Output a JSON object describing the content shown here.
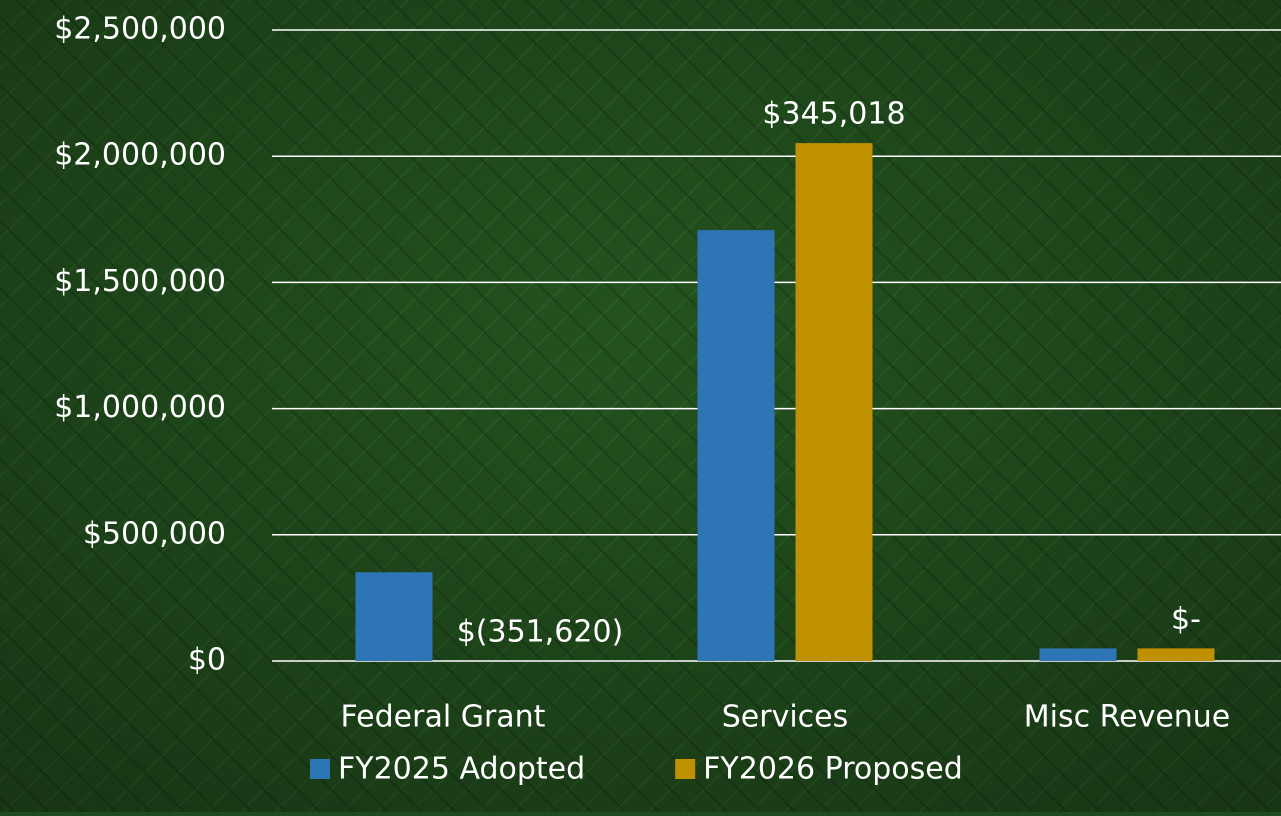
{
  "chart_data": {
    "type": "bar",
    "categories": [
      "Federal Grant",
      "Services",
      "Misc Revenue"
    ],
    "series": [
      {
        "name": "FY2025 Adopted",
        "color": "#2e75b6",
        "values": [
          351620,
          1707000,
          50000
        ]
      },
      {
        "name": "FY2026 Proposed",
        "color": "#bf9000",
        "values": [
          0,
          2052000,
          50000
        ]
      }
    ],
    "change_labels": [
      "$(351,620)",
      "$345,018",
      "$-"
    ],
    "ylim": [
      0,
      2500000
    ],
    "yticks": [
      {
        "value": 0,
        "label": "$0"
      },
      {
        "value": 500000,
        "label": "$500,000"
      },
      {
        "value": 1000000,
        "label": "$1,000,000"
      },
      {
        "value": 1500000,
        "label": "$1,500,000"
      },
      {
        "value": 2000000,
        "label": "$2,000,000"
      },
      {
        "value": 2500000,
        "label": "$2,500,000"
      }
    ],
    "grid": true,
    "legend": "bottom"
  }
}
